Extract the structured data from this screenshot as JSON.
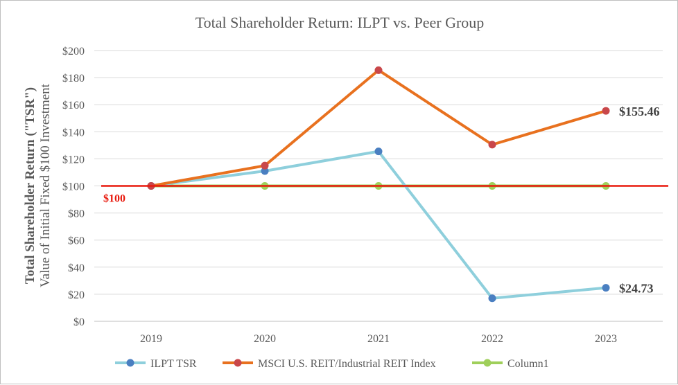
{
  "chart_data": {
    "type": "line",
    "title": "Total Shareholder Return: ILPT vs. Peer Group",
    "ylabel_bold": "Total Shareholder Return (\"TSR\")",
    "ylabel_sub": "Value of Initial Fixed $100 Investment",
    "xlabel": "",
    "categories": [
      "2019",
      "2020",
      "2021",
      "2022",
      "2023"
    ],
    "ylim": [
      0,
      200
    ],
    "ytick_values": [
      0,
      20,
      40,
      60,
      80,
      100,
      120,
      140,
      160,
      180,
      200
    ],
    "ytick_labels": [
      "$0",
      "$20",
      "$40",
      "$60",
      "$80",
      "$100",
      "$120",
      "$140",
      "$160",
      "$180",
      "$200"
    ],
    "grid": true,
    "legend_position": "bottom",
    "series": [
      {
        "name": "ILPT TSR",
        "values": [
          100,
          111,
          125.5,
          17,
          24.73
        ],
        "line_color": "#8ecfdc",
        "marker_color": "#4a7fc1"
      },
      {
        "name": "MSCI U.S. REIT/Industrial REIT Index",
        "values": [
          100,
          115,
          185.5,
          130.5,
          155.46
        ],
        "line_color": "#e8711f",
        "marker_color": "#c9474a"
      },
      {
        "name": "Column1",
        "values": [
          100,
          100,
          100,
          100,
          100
        ],
        "line_color": "#9fcf5a",
        "marker_color": "#9fcf5a"
      }
    ],
    "reference_line": {
      "value": 100,
      "label": "$100",
      "color": "#e8190d"
    },
    "annotations": [
      {
        "series": 1,
        "point": 4,
        "text": "$155.46"
      },
      {
        "series": 0,
        "point": 4,
        "text": "$24.73"
      }
    ]
  }
}
